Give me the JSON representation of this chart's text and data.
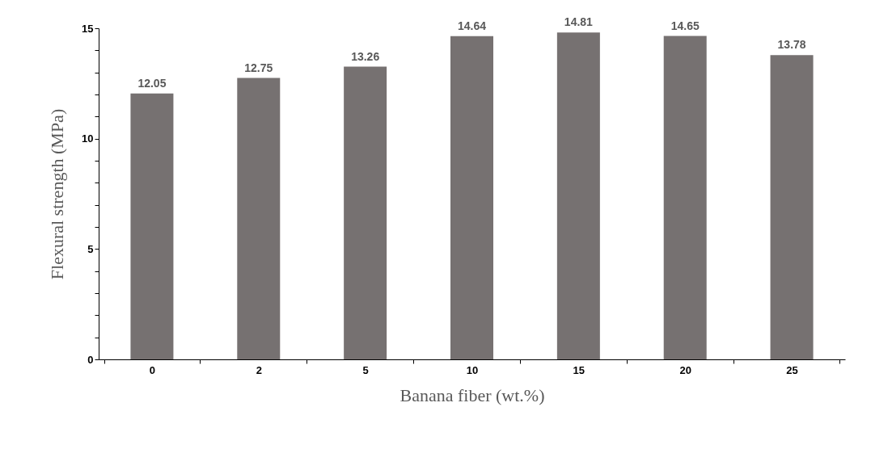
{
  "chart_data": {
    "type": "bar",
    "xlabel": "Banana fiber (wt.%)",
    "ylabel": "Flexural strength (MPa)",
    "categories": [
      "0",
      "2",
      "5",
      "10",
      "15",
      "20",
      "25"
    ],
    "values": [
      12.05,
      12.75,
      13.26,
      14.64,
      14.81,
      14.65,
      13.78
    ],
    "color": "#767171",
    "ylim": [
      0,
      15
    ],
    "yticks": [
      0,
      {
        "value": 1,
        "label": null
      },
      {
        "value": 2,
        "label": null
      },
      {
        "value": 3,
        "label": null
      },
      {
        "value": 4,
        "label": null
      },
      5,
      {
        "value": 6,
        "label": null
      },
      {
        "value": 7,
        "label": null
      },
      {
        "value": 8,
        "label": null
      },
      {
        "value": 9,
        "label": null
      },
      10,
      {
        "value": 11,
        "label": null
      },
      {
        "value": 12,
        "label": null
      },
      {
        "value": 13,
        "label": null
      },
      {
        "value": 14,
        "label": null
      },
      15
    ],
    "grid": false,
    "data_labels": true
  }
}
